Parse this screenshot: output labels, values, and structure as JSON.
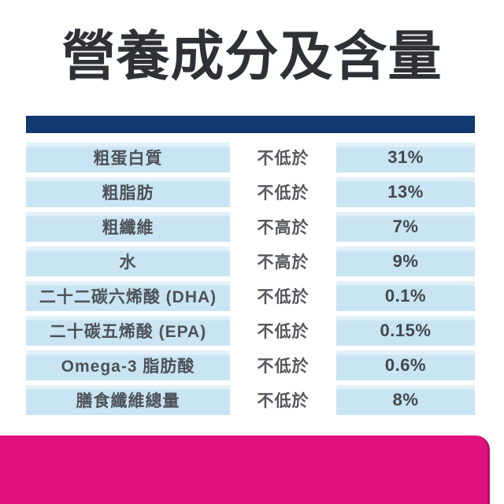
{
  "title": "營養成分及含量",
  "colors": {
    "page_bg": "#ffffff",
    "navy_divider": "#113970",
    "cell_bg": "#C9E4F3",
    "cell_bg_light": "#E2F1F9",
    "cell_text": "#4D5257",
    "condition_text": "#54585D",
    "value_text": "#43484D",
    "title_color": "#2E3237",
    "magenta": "#E0127D",
    "magenta_edge": "#B50E68"
  },
  "table": {
    "rows": [
      {
        "nutrient": "粗蛋白質",
        "condition": "不低於",
        "value": "31%"
      },
      {
        "nutrient": "粗脂肪",
        "condition": "不低於",
        "value": "13%"
      },
      {
        "nutrient": "粗纖維",
        "condition": "不高於",
        "value": "7%"
      },
      {
        "nutrient": "水",
        "condition": "不高於",
        "value": "9%"
      },
      {
        "nutrient": "二十二碳六烯酸 (DHA)",
        "condition": "不低於",
        "value": "0.1%"
      },
      {
        "nutrient": "二十碳五烯酸 (EPA)",
        "condition": "不低於",
        "value": "0.15%"
      },
      {
        "nutrient": "Omega-3 脂肪酸",
        "condition": "不低於",
        "value": "0.6%"
      },
      {
        "nutrient": "膳食纖維總量",
        "condition": "不低於",
        "value": "8%"
      }
    ]
  },
  "chart_data": {
    "type": "table",
    "title": "營養成分及含量",
    "rows": [
      [
        "粗蛋白質",
        "不低於",
        "31%"
      ],
      [
        "粗脂肪",
        "不低於",
        "13%"
      ],
      [
        "粗纖維",
        "不高於",
        "7%"
      ],
      [
        "水",
        "不高於",
        "9%"
      ],
      [
        "二十二碳六烯酸 (DHA)",
        "不低於",
        "0.1%"
      ],
      [
        "二十碳五烯酸 (EPA)",
        "不低於",
        "0.15%"
      ],
      [
        "Omega-3 脂肪酸",
        "不低於",
        "0.6%"
      ],
      [
        "膳食纖維總量",
        "不低於",
        "8%"
      ]
    ],
    "layout_hints": {
      "columns": 3,
      "column_1_bg": "blue-cell",
      "column_2_bg": "white",
      "column_3_bg": "blue-cell",
      "units": "percent of composition"
    }
  }
}
